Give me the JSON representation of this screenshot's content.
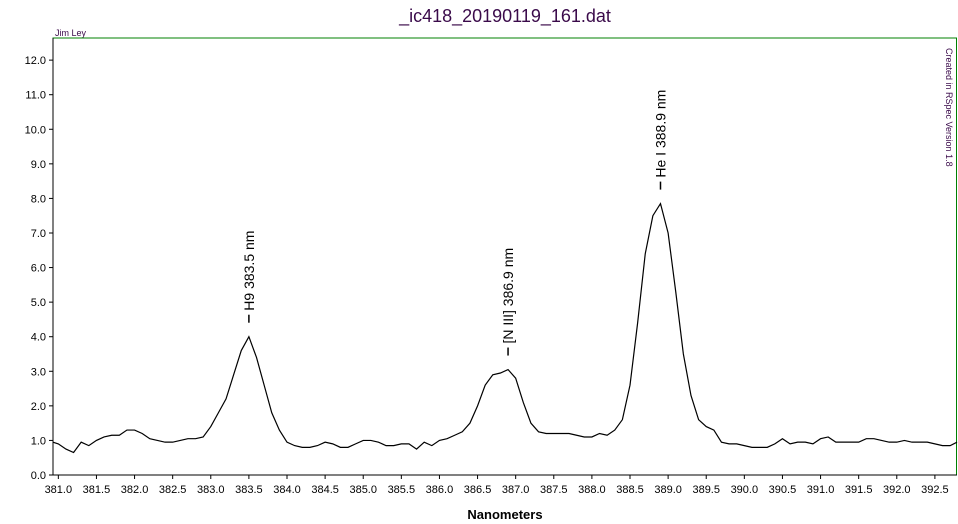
{
  "chart_data": {
    "type": "line",
    "title": "_ic418_20190119_161.dat",
    "author": "Jim Ley",
    "credit": "Created in RSpec Version 1.8",
    "x_label": "Nanometers",
    "color": "#000000",
    "frame_color": "#008000",
    "title_color": "#3a0a4a",
    "xlim": [
      380.93,
      392.79
    ],
    "ylim": [
      0,
      12.64
    ],
    "xticks": [
      {
        "value": 381,
        "label": "381.0"
      },
      381.5,
      {
        "value": 382,
        "label": "382.0"
      },
      382.5,
      {
        "value": 383,
        "label": "383.0"
      },
      383.5,
      {
        "value": 384,
        "label": "384.0"
      },
      384.5,
      {
        "value": 385,
        "label": "385.0"
      },
      385.5,
      {
        "value": 386,
        "label": "386.0"
      },
      386.5,
      {
        "value": 387,
        "label": "387.0"
      },
      387.5,
      {
        "value": 388,
        "label": "388.0"
      },
      388.5,
      {
        "value": 389,
        "label": "389.0"
      },
      389.5,
      {
        "value": 390,
        "label": "390.0"
      },
      390.5,
      {
        "value": 391,
        "label": "391.0"
      },
      391.5,
      {
        "value": 392,
        "label": "392.0"
      },
      392.5
    ],
    "yticks": [
      {
        "value": 0,
        "label": "0.0"
      },
      {
        "value": 1,
        "label": "1.0"
      },
      {
        "value": 2,
        "label": "2.0"
      },
      {
        "value": 3,
        "label": "3.0"
      },
      {
        "value": 4,
        "label": "4.0"
      },
      {
        "value": 5,
        "label": "5.0"
      },
      {
        "value": 6,
        "label": "6.0"
      },
      {
        "value": 7,
        "label": "7.0"
      },
      {
        "value": 8,
        "label": "8.0"
      },
      {
        "value": 9,
        "label": "9.0"
      },
      {
        "value": 10,
        "label": "10.0"
      },
      {
        "value": 11,
        "label": "11.0"
      },
      {
        "value": 12,
        "label": "12.0"
      }
    ],
    "x": [
      380.93,
      381.0,
      381.1,
      381.2,
      381.3,
      381.4,
      381.5,
      381.6,
      381.7,
      381.8,
      381.9,
      382.0,
      382.1,
      382.2,
      382.3,
      382.4,
      382.5,
      382.6,
      382.7,
      382.8,
      382.9,
      383.0,
      383.1,
      383.2,
      383.3,
      383.4,
      383.5,
      383.6,
      383.7,
      383.8,
      383.9,
      384.0,
      384.1,
      384.2,
      384.3,
      384.4,
      384.5,
      384.6,
      384.7,
      384.8,
      384.9,
      385.0,
      385.1,
      385.2,
      385.3,
      385.4,
      385.5,
      385.6,
      385.7,
      385.8,
      385.9,
      386.0,
      386.1,
      386.2,
      386.3,
      386.4,
      386.5,
      386.6,
      386.7,
      386.8,
      386.9,
      387.0,
      387.1,
      387.2,
      387.3,
      387.4,
      387.5,
      387.6,
      387.7,
      387.8,
      387.9,
      388.0,
      388.1,
      388.2,
      388.3,
      388.4,
      388.5,
      388.6,
      388.7,
      388.8,
      388.9,
      389.0,
      389.1,
      389.2,
      389.3,
      389.4,
      389.5,
      389.6,
      389.7,
      389.8,
      389.9,
      390.0,
      390.1,
      390.2,
      390.3,
      390.4,
      390.5,
      390.6,
      390.7,
      390.8,
      390.9,
      391.0,
      391.1,
      391.2,
      391.3,
      391.4,
      391.5,
      391.6,
      391.7,
      391.8,
      391.9,
      392.0,
      392.1,
      392.2,
      392.3,
      392.4,
      392.5,
      392.6,
      392.7,
      392.79
    ],
    "values": [
      0.95,
      0.9,
      0.75,
      0.65,
      0.95,
      0.85,
      1.0,
      1.1,
      1.15,
      1.15,
      1.3,
      1.3,
      1.2,
      1.05,
      1.0,
      0.95,
      0.95,
      1.0,
      1.05,
      1.05,
      1.1,
      1.4,
      1.8,
      2.2,
      2.9,
      3.6,
      4.0,
      3.4,
      2.6,
      1.8,
      1.3,
      0.95,
      0.85,
      0.8,
      0.8,
      0.85,
      0.95,
      0.9,
      0.8,
      0.8,
      0.9,
      1.0,
      1.0,
      0.95,
      0.85,
      0.85,
      0.9,
      0.9,
      0.75,
      0.95,
      0.85,
      1.0,
      1.05,
      1.15,
      1.25,
      1.5,
      2.0,
      2.6,
      2.9,
      2.95,
      3.05,
      2.8,
      2.1,
      1.5,
      1.25,
      1.2,
      1.2,
      1.2,
      1.2,
      1.15,
      1.1,
      1.1,
      1.2,
      1.15,
      1.3,
      1.6,
      2.6,
      4.4,
      6.4,
      7.5,
      7.85,
      7.0,
      5.3,
      3.5,
      2.3,
      1.6,
      1.4,
      1.3,
      0.95,
      0.9,
      0.9,
      0.85,
      0.8,
      0.8,
      0.8,
      0.9,
      1.05,
      0.9,
      0.95,
      0.95,
      0.9,
      1.05,
      1.1,
      0.95,
      0.95,
      0.95,
      0.95,
      1.05,
      1.05,
      1.0,
      0.95,
      0.95,
      1.0,
      0.95,
      0.95,
      0.95,
      0.9,
      0.85,
      0.85,
      0.95
    ],
    "annotations": [
      {
        "text": "H9 383.5 nm",
        "x": 383.5,
        "y": 4.0
      },
      {
        "text": "[N III] 386.9 nm",
        "x": 386.9,
        "y": 3.05
      },
      {
        "text": "He I 388.9 nm",
        "x": 388.9,
        "y": 7.85
      }
    ]
  }
}
